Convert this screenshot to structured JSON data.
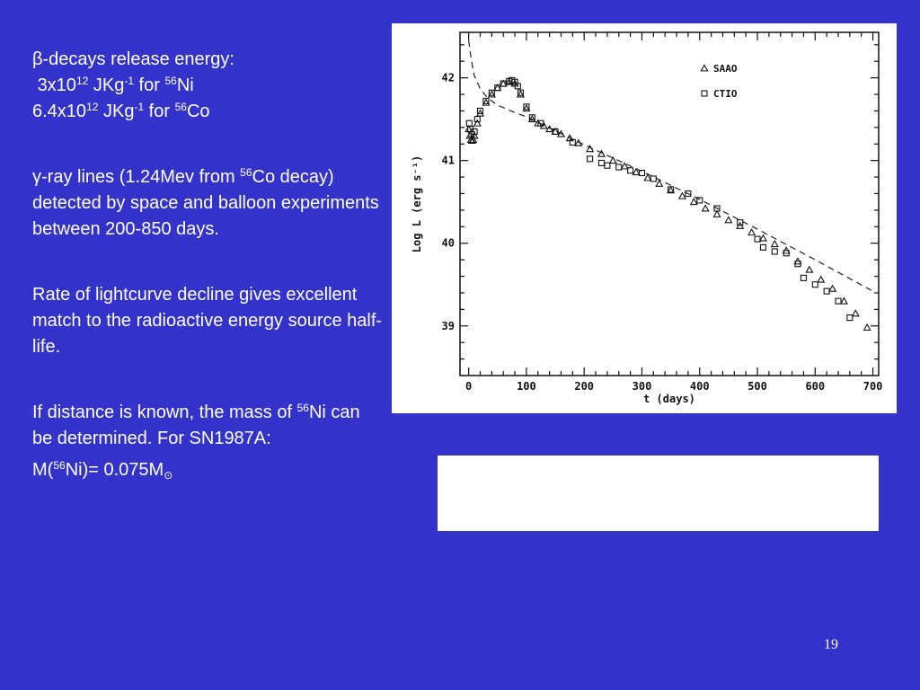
{
  "slide": {
    "beta": {
      "symbol": "β",
      "heading_suffix": "-decays release energy:",
      "ni_value": "3x10",
      "ni_exp": "12",
      "ni_units": " JKg",
      "ni_units_exp": "-1",
      "ni_for": " for ",
      "ni_iso_mass": "56",
      "ni_iso": "Ni",
      "co_value": "6.4x10",
      "co_exp": "12",
      "co_units": " JKg",
      "co_units_exp": "-1",
      "co_for": " for ",
      "co_iso_mass": "56",
      "co_iso": "Co"
    },
    "gamma": {
      "symbol": "γ",
      "text_a": "-ray lines (1.24Mev from ",
      "iso_mass": "56",
      "text_b": "Co decay) detected by space and balloon experiments between 200-850 days."
    },
    "decline": "Rate of lightcurve decline gives excellent match to the radioactive energy source half-life.",
    "mass": {
      "line_a": "If distance is known, the mass of ",
      "iso_mass": "56",
      "line_b": "Ni can be determined. For SN1987A:",
      "eq_prefix": "M(",
      "eq_iso_mass": "56",
      "eq_iso": "Ni)= 0.075M",
      "eq_sub": "⊙"
    },
    "page_number": "19"
  },
  "chart_data": {
    "type": "scatter",
    "xlabel": "t (days)",
    "ylabel": "Log L (erg s⁻¹)",
    "xlim": [
      -15,
      710
    ],
    "ylim": [
      38.4,
      42.55
    ],
    "xticks": [
      0,
      100,
      200,
      300,
      400,
      500,
      600,
      700
    ],
    "yticks": [
      39,
      40,
      41,
      42
    ],
    "legend_position": "top-right",
    "series": [
      {
        "name": "SAAO",
        "marker": "triangle",
        "x": [
          0,
          2,
          4,
          6,
          8,
          10,
          15,
          20,
          30,
          40,
          50,
          60,
          70,
          80,
          90,
          100,
          110,
          120,
          130,
          140,
          150,
          160,
          175,
          190,
          210,
          230,
          250,
          270,
          290,
          310,
          330,
          350,
          370,
          390,
          410,
          430,
          450,
          470,
          490,
          510,
          530,
          550,
          570,
          590,
          610,
          630,
          650,
          670,
          690
        ],
        "y": [
          41.38,
          41.3,
          41.25,
          41.24,
          41.25,
          41.3,
          41.45,
          41.57,
          41.7,
          41.8,
          41.88,
          41.93,
          41.95,
          41.93,
          41.8,
          41.63,
          41.5,
          41.45,
          41.42,
          41.38,
          41.35,
          41.32,
          41.27,
          41.21,
          41.14,
          41.08,
          41.0,
          40.93,
          40.86,
          40.79,
          40.72,
          40.64,
          40.57,
          40.5,
          40.42,
          40.35,
          40.28,
          40.21,
          40.13,
          40.06,
          39.99,
          39.91,
          39.78,
          39.68,
          39.56,
          39.45,
          39.3,
          39.15,
          38.98
        ]
      },
      {
        "name": "CTIO",
        "marker": "square",
        "x": [
          1,
          3,
          5,
          10,
          15,
          20,
          30,
          40,
          50,
          60,
          70,
          75,
          80,
          85,
          90,
          100,
          110,
          125,
          150,
          180,
          210,
          230,
          240,
          260,
          280,
          300,
          320,
          350,
          380,
          400,
          430,
          470,
          500,
          510,
          530,
          550,
          570,
          580,
          600,
          620,
          640,
          660
        ],
        "y": [
          41.45,
          41.38,
          41.32,
          41.35,
          41.5,
          41.6,
          41.72,
          41.82,
          41.88,
          41.93,
          41.96,
          41.97,
          41.95,
          41.9,
          41.82,
          41.65,
          41.52,
          41.45,
          41.35,
          41.22,
          41.02,
          40.97,
          40.94,
          40.92,
          40.88,
          40.85,
          40.78,
          40.65,
          40.6,
          40.52,
          40.42,
          40.25,
          40.05,
          39.95,
          39.9,
          39.88,
          39.75,
          39.58,
          39.5,
          39.42,
          39.3,
          39.1
        ]
      }
    ],
    "fit_line": {
      "style": "dashed",
      "x": [
        0,
        5,
        10,
        20,
        30,
        40,
        50,
        60,
        80,
        100,
        150,
        200,
        300,
        400,
        500,
        600,
        700
      ],
      "y": [
        42.45,
        42.2,
        42.02,
        41.87,
        41.78,
        41.72,
        41.67,
        41.64,
        41.58,
        41.53,
        41.36,
        41.19,
        40.87,
        40.53,
        40.17,
        39.8,
        39.42
      ]
    }
  }
}
